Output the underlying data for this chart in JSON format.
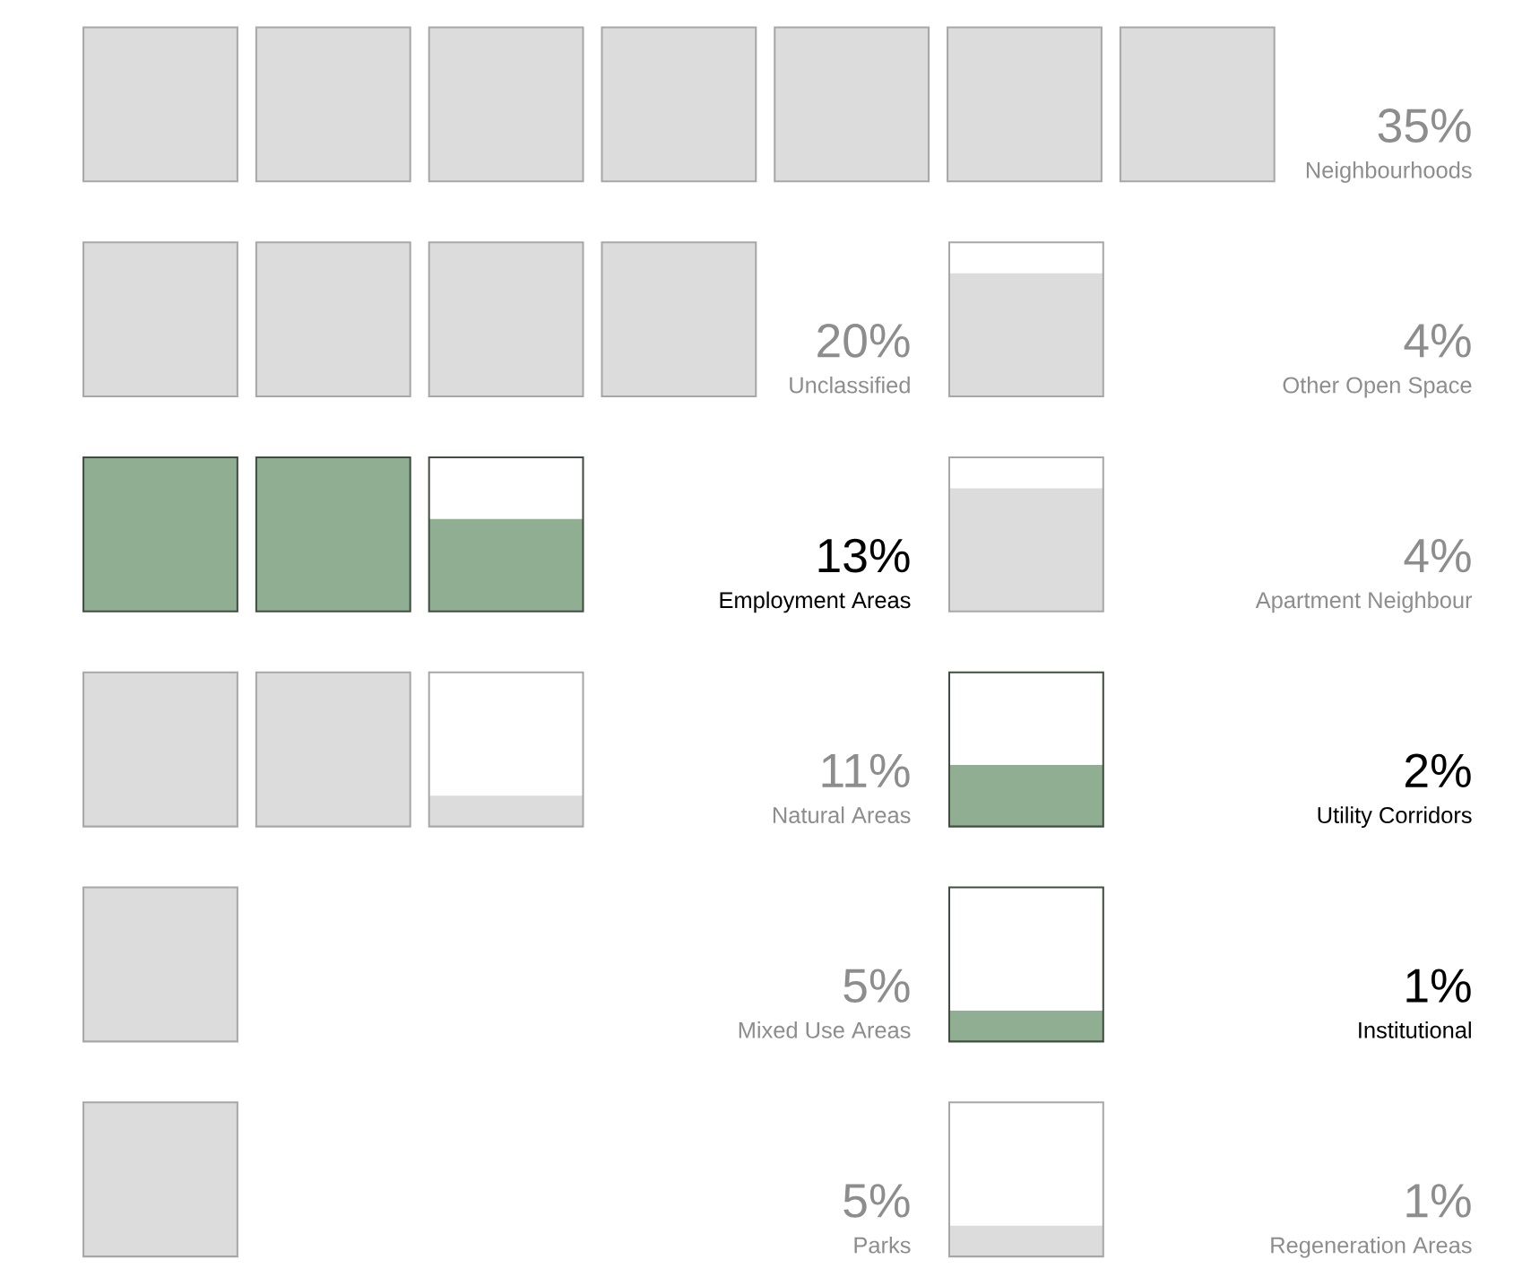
{
  "chart_data": {
    "type": "other",
    "categories": [
      "Neighbourhoods",
      "Unclassified",
      "Employment Areas",
      "Natural Areas",
      "Mixed Use Areas",
      "Parks",
      "Other Open Space",
      "Apartment Neighbour",
      "Utility Corridors",
      "Institutional",
      "Regeneration Areas"
    ],
    "values": [
      35,
      20,
      13,
      11,
      5,
      5,
      4,
      4,
      2,
      1,
      1
    ],
    "colors": [
      "#dcdcdc",
      "#dcdcdc",
      "#8fae92",
      "#dcdcdc",
      "#dcdcdc",
      "#dcdcdc",
      "#dcdcdc",
      "#dcdcdc",
      "#8fae92",
      "#8fae92",
      "#dcdcdc"
    ],
    "value_labels": [
      "35%",
      "20%",
      "13%",
      "11%",
      "5%",
      "5%",
      "4%",
      "4%",
      "2%",
      "1%",
      "1%"
    ]
  }
}
